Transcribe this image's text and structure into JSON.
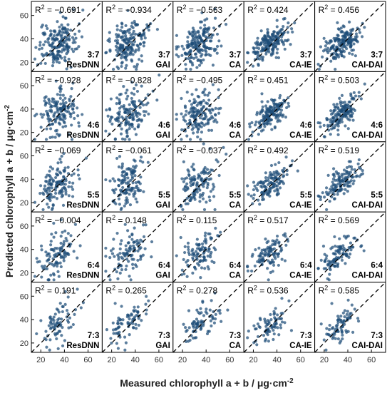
{
  "chart_data": {
    "type": "scatter",
    "layout_grid": "5x5 panels; rows = training:test split ratio, columns = model",
    "xlabel": "Measured chlorophyll a + b / μg·cm⁻²",
    "ylabel": "Predicted chlorophyll a + b / μg·cm⁻²",
    "xlim": [
      12,
      72
    ],
    "ylim": [
      12,
      72
    ],
    "x_ticks": [
      20,
      40,
      60
    ],
    "y_ticks": [
      20,
      40,
      60
    ],
    "reference_line": "1:1 dashed",
    "models": [
      "ResDNN",
      "GAI",
      "CA",
      "CA-IE",
      "CAI-DAI"
    ],
    "ratios": [
      "3:7",
      "4:6",
      "5:5",
      "6:4",
      "7:3"
    ],
    "r2_label": "R² = ",
    "r2": [
      [
        "−0.691",
        "−0.934",
        "−0.563",
        "0.424",
        "0.456"
      ],
      [
        "−0.928",
        "−0.828",
        "−0.495",
        "0.451",
        "0.503"
      ],
      [
        "−0.069",
        "−0.061",
        "−0.037",
        "0.492",
        "0.519"
      ],
      [
        "−0.004",
        "0.148",
        "0.115",
        "0.517",
        "0.569"
      ],
      [
        "0.191",
        "0.265",
        "0.278",
        "0.536",
        "0.585"
      ]
    ],
    "point_color": "#1f4e79",
    "points_per_panel": [
      [
        180,
        180,
        180,
        180,
        180
      ],
      [
        150,
        150,
        150,
        150,
        150
      ],
      [
        125,
        125,
        125,
        125,
        125
      ],
      [
        100,
        100,
        100,
        100,
        100
      ],
      [
        75,
        75,
        75,
        75,
        75
      ]
    ]
  }
}
